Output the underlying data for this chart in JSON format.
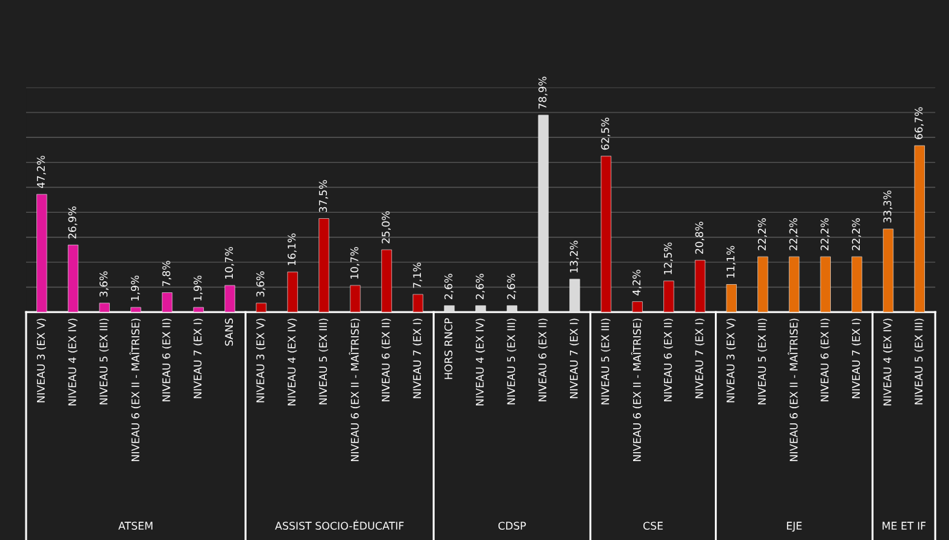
{
  "chart_data": {
    "type": "bar",
    "categories": [
      "NIVEAU 3 (EX V)",
      "NIVEAU 4 (EX IV)",
      "NIVEAU 5 (EX III)",
      "NIVEAU 6 (EX II - MAÎTRISE)",
      "NIVEAU 6 (EX II)",
      "NIVEAU 7 (EX I)",
      "SANS",
      "NIVEAU 3 (EX V)",
      "NIVEAU 4 (EX IV)",
      "NIVEAU 5 (EX III)",
      "NIVEAU 6 (EX II - MAÎTRISE)",
      "NIVEAU 6 (EX II)",
      "NIVEAU 7 (EX I)",
      "HORS RNCP",
      "NIVEAU 4 (EX IV)",
      "NIVEAU 5 (EX III)",
      "NIVEAU 6 (EX II)",
      "NIVEAU 7 (EX I)",
      "NIVEAU 5 (EX III)",
      "NIVEAU 6 (EX II - MAÎTRISE)",
      "NIVEAU 6 (EX II)",
      "NIVEAU 7 (EX I)",
      "NIVEAU 3 (EX V)",
      "NIVEAU 5 (EX III)",
      "NIVEAU 6 (EX II - MAÎTRISE)",
      "NIVEAU 6 (EX II)",
      "NIVEAU 7 (EX I)",
      "NIVEAU 4 (EX IV)",
      "NIVEAU 5 (EX III)"
    ],
    "series": [
      {
        "color": "#e0189a",
        "values": [
          47.2,
          26.9,
          3.6,
          1.9,
          7.8,
          1.9,
          10.7,
          null,
          null,
          null,
          null,
          null,
          null,
          null,
          null,
          null,
          null,
          null,
          null,
          null,
          null,
          null,
          null,
          null,
          null,
          null,
          null,
          null,
          null
        ],
        "value_labels": [
          "47,2%",
          "26,9%",
          "3,6%",
          "1,9%",
          "7,8%",
          "1,9%",
          "10,7%",
          null,
          null,
          null,
          null,
          null,
          null,
          null,
          null,
          null,
          null,
          null,
          null,
          null,
          null,
          null,
          null,
          null,
          null,
          null,
          null,
          null,
          null
        ]
      },
      {
        "color": "#c00000",
        "values": [
          null,
          null,
          null,
          null,
          null,
          null,
          null,
          3.6,
          16.1,
          37.5,
          10.7,
          25.0,
          7.1,
          null,
          null,
          null,
          null,
          null,
          null,
          null,
          null,
          null,
          null,
          null,
          null,
          null,
          null,
          null,
          null
        ],
        "value_labels": [
          null,
          null,
          null,
          null,
          null,
          null,
          null,
          "3,6%",
          "16,1%",
          "37,5%",
          "10,7%",
          "25,0%",
          "7,1%",
          null,
          null,
          null,
          null,
          null,
          null,
          null,
          null,
          null,
          null,
          null,
          null,
          null,
          null,
          null,
          null
        ]
      },
      {
        "color": "#d9d9d9",
        "values": [
          null,
          null,
          null,
          null,
          null,
          null,
          null,
          null,
          null,
          null,
          null,
          null,
          null,
          2.6,
          2.6,
          2.6,
          78.9,
          13.2,
          null,
          null,
          null,
          null,
          null,
          null,
          null,
          null,
          null,
          null,
          null
        ],
        "value_labels": [
          null,
          null,
          null,
          null,
          null,
          null,
          null,
          null,
          null,
          null,
          null,
          null,
          null,
          "2,6%",
          "2,6%",
          "2,6%",
          "78,9%",
          "13,2%",
          null,
          null,
          null,
          null,
          null,
          null,
          null,
          null,
          null,
          null,
          null
        ]
      },
      {
        "color": "#c00000",
        "values": [
          null,
          null,
          null,
          null,
          null,
          null,
          null,
          null,
          null,
          null,
          null,
          null,
          null,
          null,
          null,
          null,
          null,
          null,
          62.5,
          4.2,
          12.5,
          20.8,
          null,
          null,
          null,
          null,
          null,
          null,
          null
        ],
        "value_labels": [
          null,
          null,
          null,
          null,
          null,
          null,
          null,
          null,
          null,
          null,
          null,
          null,
          null,
          null,
          null,
          null,
          null,
          null,
          "62,5%",
          "4,2%",
          "12,5%",
          "20,8%",
          null,
          null,
          null,
          null,
          null,
          null,
          null
        ]
      },
      {
        "color": "#e36c09",
        "values": [
          null,
          null,
          null,
          null,
          null,
          null,
          null,
          null,
          null,
          null,
          null,
          null,
          null,
          null,
          null,
          null,
          null,
          null,
          null,
          null,
          null,
          null,
          11.1,
          22.2,
          22.2,
          22.2,
          22.2,
          null,
          null
        ],
        "value_labels": [
          null,
          null,
          null,
          null,
          null,
          null,
          null,
          null,
          null,
          null,
          null,
          null,
          null,
          null,
          null,
          null,
          null,
          null,
          null,
          null,
          null,
          null,
          "11,1%",
          "22,2%",
          "22,2%",
          "22,2%",
          "22,2%",
          null,
          null
        ]
      },
      {
        "color": "#e36c09",
        "values": [
          null,
          null,
          null,
          null,
          null,
          null,
          null,
          null,
          null,
          null,
          null,
          null,
          null,
          null,
          null,
          null,
          null,
          null,
          null,
          null,
          null,
          null,
          null,
          null,
          null,
          null,
          null,
          33.3,
          66.7
        ],
        "value_labels": [
          null,
          null,
          null,
          null,
          null,
          null,
          null,
          null,
          null,
          null,
          null,
          null,
          null,
          null,
          null,
          null,
          null,
          null,
          null,
          null,
          null,
          null,
          null,
          null,
          null,
          null,
          null,
          "33,3%",
          "66,7%"
        ]
      }
    ],
    "annotations": [
      "ATSEM",
      "ASSIST SOCIO-ÉDUCATIF",
      "CDSP",
      "CSE",
      "EJE",
      "ME ET IF"
    ],
    "ylim": [
      0,
      90
    ],
    "yticks": [
      {
        "value": 10,
        "label": null
      },
      {
        "value": 20,
        "label": null
      },
      {
        "value": 30,
        "label": null
      },
      {
        "value": 40,
        "label": null
      },
      {
        "value": 50,
        "label": null
      },
      {
        "value": 60,
        "label": null
      },
      {
        "value": 70,
        "label": null
      },
      {
        "value": 80,
        "label": null
      },
      {
        "value": 90,
        "label": null
      }
    ],
    "grid": "y",
    "tick_labels": "x",
    "legend": false
  }
}
